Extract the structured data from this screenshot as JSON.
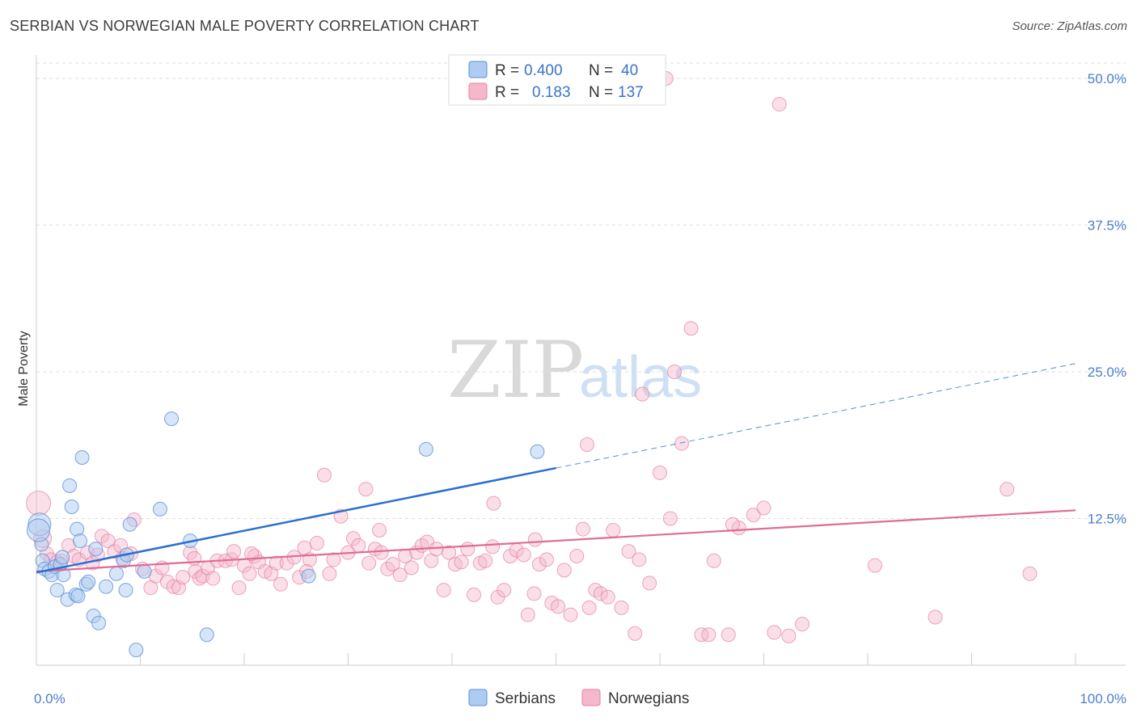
{
  "title": "SERBIAN VS NORWEGIAN MALE POVERTY CORRELATION CHART",
  "source": "Source: ZipAtlas.com",
  "watermark": {
    "zip": "ZIP",
    "atlas": "atlas"
  },
  "colors": {
    "serbians_fill": "#aecbf2",
    "serbians_stroke": "#5b8fd6",
    "serbians_line": "#2a6fd1",
    "norwegians_fill": "#f5b8cb",
    "norwegians_stroke": "#e57fa3",
    "norwegians_line": "#e06b96",
    "grid": "#dddddd",
    "tick_label": "#4a7fcf"
  },
  "legend": {
    "r_label": "R =",
    "n_label": "N =",
    "serbians": {
      "r": "0.400",
      "n": "40"
    },
    "norwegians": {
      "r": "0.183",
      "n": "137"
    }
  },
  "chart_data": {
    "type": "scatter",
    "xlabel": "",
    "ylabel": "Male Poverty",
    "xlim": [
      0,
      100
    ],
    "ylim": [
      0,
      50
    ],
    "x_tick_labels": [
      "0.0%",
      "100.0%"
    ],
    "y_ticks": [
      12.5,
      25.0,
      37.5,
      50.0
    ],
    "y_tick_labels": [
      "12.5%",
      "25.0%",
      "37.5%",
      "50.0%"
    ],
    "grid": true,
    "legend_position": "top-center",
    "series": [
      {
        "name": "Serbians",
        "r": 0.4,
        "n": 40,
        "trend": {
          "x0": 0,
          "y0": 7.9,
          "x1": 50,
          "y1": 16.8,
          "dashed_to_x": 100,
          "dashed_to_y": 25.7
        },
        "points": [
          [
            0.3,
            12.0
          ],
          [
            0.5,
            10.3
          ],
          [
            0.6,
            8.9
          ],
          [
            0.8,
            8.2
          ],
          [
            1.2,
            8.0
          ],
          [
            1.5,
            7.7
          ],
          [
            1.8,
            8.4
          ],
          [
            2.0,
            6.4
          ],
          [
            2.3,
            8.6
          ],
          [
            2.5,
            9.2
          ],
          [
            2.6,
            7.7
          ],
          [
            3.0,
            5.6
          ],
          [
            3.2,
            15.3
          ],
          [
            3.4,
            13.5
          ],
          [
            3.8,
            6.0
          ],
          [
            3.9,
            11.6
          ],
          [
            4.0,
            5.9
          ],
          [
            4.2,
            10.6
          ],
          [
            4.4,
            17.7
          ],
          [
            4.8,
            6.9
          ],
          [
            5.0,
            7.1
          ],
          [
            5.5,
            4.2
          ],
          [
            5.7,
            9.9
          ],
          [
            6.0,
            3.6
          ],
          [
            6.7,
            6.7
          ],
          [
            7.7,
            7.8
          ],
          [
            8.4,
            8.9
          ],
          [
            8.6,
            6.4
          ],
          [
            8.7,
            9.4
          ],
          [
            9.0,
            12.0
          ],
          [
            9.6,
            1.3
          ],
          [
            10.4,
            8.0
          ],
          [
            11.9,
            13.3
          ],
          [
            13.0,
            21.0
          ],
          [
            14.8,
            10.6
          ],
          [
            16.4,
            2.6
          ],
          [
            26.2,
            7.6
          ],
          [
            37.5,
            18.4
          ],
          [
            48.2,
            18.2
          ],
          [
            0.2,
            11.5
          ]
        ]
      },
      {
        "name": "Norwegians",
        "r": 0.183,
        "n": 137,
        "trend": {
          "x0": 0,
          "y0": 8.0,
          "x1": 100,
          "y1": 13.2
        },
        "points": [
          [
            0.2,
            13.8
          ],
          [
            0.6,
            10.8
          ],
          [
            1.0,
            9.5
          ],
          [
            1.4,
            9.0
          ],
          [
            2.0,
            8.8
          ],
          [
            2.4,
            8.9
          ],
          [
            3.1,
            10.2
          ],
          [
            3.6,
            9.3
          ],
          [
            4.1,
            9.0
          ],
          [
            4.9,
            9.6
          ],
          [
            5.4,
            8.7
          ],
          [
            5.9,
            9.4
          ],
          [
            6.3,
            11.0
          ],
          [
            6.9,
            10.6
          ],
          [
            7.5,
            9.7
          ],
          [
            8.1,
            10.2
          ],
          [
            8.3,
            9.1
          ],
          [
            9.1,
            9.5
          ],
          [
            9.4,
            12.4
          ],
          [
            10.2,
            8.2
          ],
          [
            11.0,
            6.6
          ],
          [
            11.5,
            7.6
          ],
          [
            12.1,
            8.3
          ],
          [
            12.6,
            7.1
          ],
          [
            13.2,
            6.7
          ],
          [
            13.7,
            6.6
          ],
          [
            14.1,
            7.5
          ],
          [
            14.8,
            9.6
          ],
          [
            15.3,
            8.0
          ],
          [
            15.7,
            7.4
          ],
          [
            16.0,
            7.6
          ],
          [
            16.5,
            8.3
          ],
          [
            17.0,
            7.4
          ],
          [
            17.4,
            8.9
          ],
          [
            18.2,
            8.9
          ],
          [
            18.8,
            9.0
          ],
          [
            19.0,
            9.7
          ],
          [
            19.5,
            6.6
          ],
          [
            20.0,
            8.5
          ],
          [
            20.5,
            7.8
          ],
          [
            21.0,
            9.3
          ],
          [
            21.4,
            8.8
          ],
          [
            22.0,
            8.0
          ],
          [
            22.6,
            7.8
          ],
          [
            23.1,
            8.7
          ],
          [
            23.5,
            6.9
          ],
          [
            24.1,
            8.7
          ],
          [
            24.8,
            9.2
          ],
          [
            25.3,
            7.5
          ],
          [
            25.8,
            10.0
          ],
          [
            26.3,
            9.0
          ],
          [
            27.0,
            10.4
          ],
          [
            27.7,
            16.2
          ],
          [
            28.2,
            7.8
          ],
          [
            28.6,
            9.0
          ],
          [
            29.3,
            12.7
          ],
          [
            30.0,
            9.6
          ],
          [
            30.5,
            10.8
          ],
          [
            31.0,
            10.2
          ],
          [
            31.7,
            15.0
          ],
          [
            32.0,
            8.7
          ],
          [
            32.6,
            9.9
          ],
          [
            33.2,
            9.6
          ],
          [
            33.8,
            8.2
          ],
          [
            34.3,
            8.6
          ],
          [
            35.0,
            7.7
          ],
          [
            35.5,
            9.3
          ],
          [
            36.1,
            8.3
          ],
          [
            36.6,
            9.6
          ],
          [
            37.1,
            10.2
          ],
          [
            37.6,
            10.5
          ],
          [
            38.0,
            8.9
          ],
          [
            38.5,
            9.9
          ],
          [
            39.2,
            6.4
          ],
          [
            39.7,
            9.6
          ],
          [
            40.3,
            8.6
          ],
          [
            40.9,
            8.8
          ],
          [
            41.5,
            9.9
          ],
          [
            42.1,
            6.0
          ],
          [
            42.7,
            8.7
          ],
          [
            43.2,
            8.9
          ],
          [
            43.9,
            10.1
          ],
          [
            44.4,
            5.8
          ],
          [
            45.0,
            6.4
          ],
          [
            45.6,
            9.3
          ],
          [
            46.2,
            9.8
          ],
          [
            46.9,
            9.4
          ],
          [
            47.3,
            4.3
          ],
          [
            47.9,
            6.1
          ],
          [
            48.4,
            8.6
          ],
          [
            49.1,
            9.0
          ],
          [
            49.6,
            5.3
          ],
          [
            50.2,
            5.0
          ],
          [
            50.8,
            8.1
          ],
          [
            51.4,
            4.3
          ],
          [
            52.0,
            9.3
          ],
          [
            52.6,
            11.6
          ],
          [
            53.2,
            4.9
          ],
          [
            53.8,
            6.4
          ],
          [
            54.3,
            6.1
          ],
          [
            55.0,
            5.8
          ],
          [
            55.5,
            11.5
          ],
          [
            56.3,
            4.9
          ],
          [
            57.0,
            9.7
          ],
          [
            57.6,
            2.7
          ],
          [
            58.3,
            23.1
          ],
          [
            59.0,
            7.0
          ],
          [
            60.0,
            16.4
          ],
          [
            61.0,
            12.5
          ],
          [
            62.1,
            18.9
          ],
          [
            63.0,
            28.7
          ],
          [
            64.0,
            2.6
          ],
          [
            64.7,
            2.6
          ],
          [
            65.2,
            8.9
          ],
          [
            66.6,
            2.6
          ],
          [
            67.6,
            11.7
          ],
          [
            69.0,
            12.8
          ],
          [
            70.0,
            13.4
          ],
          [
            71.0,
            2.8
          ],
          [
            72.4,
            2.5
          ],
          [
            73.7,
            3.5
          ],
          [
            80.7,
            8.5
          ],
          [
            86.5,
            4.1
          ],
          [
            93.4,
            15.0
          ],
          [
            95.6,
            7.8
          ],
          [
            61.4,
            25.0
          ],
          [
            60.6,
            50.0
          ],
          [
            71.5,
            47.8
          ],
          [
            53.0,
            18.8
          ],
          [
            48.0,
            10.7
          ],
          [
            67.0,
            12.0
          ],
          [
            26.0,
            8.0
          ],
          [
            44.0,
            13.8
          ],
          [
            58.0,
            9.0
          ],
          [
            33.0,
            11.5
          ],
          [
            15.2,
            9.1
          ],
          [
            20.7,
            9.5
          ]
        ]
      }
    ]
  },
  "bottom_legend": [
    {
      "name": "Serbians"
    },
    {
      "name": "Norwegians"
    }
  ]
}
